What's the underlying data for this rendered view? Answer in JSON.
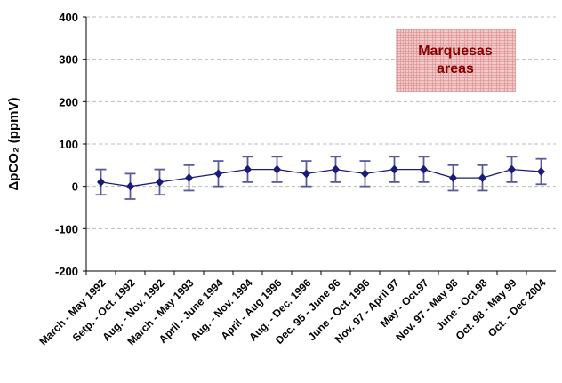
{
  "chart_data": {
    "type": "line",
    "y_label": "ΔpCO₂ (ppmV)",
    "annotation": [
      "Marquesas",
      "areas"
    ],
    "categories": [
      "March - May 1992",
      "Setp. - Oct. 1992",
      "Aug. - Nov. 1992",
      "March - May 1993",
      "April - June 1994",
      "Aug. - Nov. 1994",
      "April - Aug 1996",
      "Aug. - Dec. 1996",
      "Dec. 95 - June 96",
      "June - Oct. 1996",
      "Nov. 97 - April 97",
      "May - Oct.97",
      "Nov. 97 - May 98",
      "June - Oct.98",
      "Oct. 98 - May 99",
      "Oct. - Dec 2004"
    ],
    "values": [
      10,
      0,
      10,
      20,
      30,
      40,
      40,
      30,
      40,
      30,
      40,
      40,
      20,
      20,
      40,
      35
    ],
    "errors": [
      30,
      30,
      30,
      30,
      30,
      30,
      30,
      30,
      30,
      30,
      30,
      30,
      30,
      30,
      30,
      30
    ],
    "color": "#1a1a7a",
    "error_color": "#5a5a9a",
    "ylim": [
      -200,
      400
    ],
    "yticks": [
      -200,
      -100,
      0,
      100,
      200,
      300,
      400
    ],
    "grid": true
  }
}
